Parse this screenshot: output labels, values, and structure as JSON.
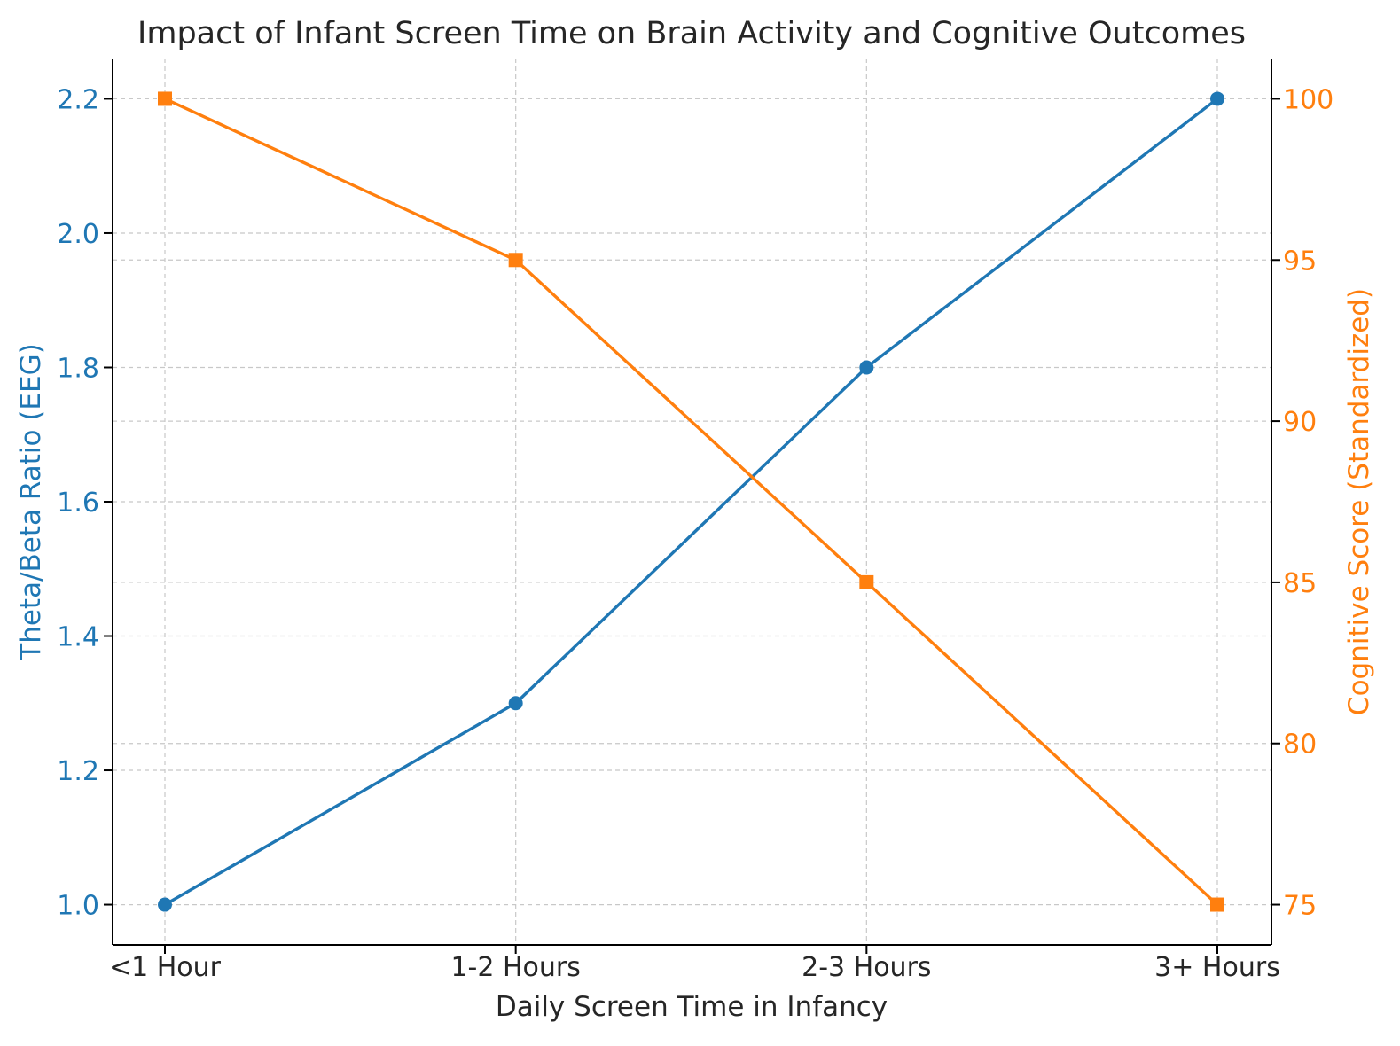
{
  "chart_data": {
    "type": "line",
    "title": "Impact of Infant Screen Time on Brain Activity and Cognitive Outcomes",
    "xlabel": "Daily Screen Time in Infancy",
    "categories": [
      "<1 Hour",
      "1-2 Hours",
      "2-3 Hours",
      "3+ Hours"
    ],
    "grid": true,
    "y_left": {
      "label": "Theta/Beta Ratio (EEG)",
      "ylim": [
        0.94,
        2.26
      ],
      "ticks": [
        "1.0",
        "1.2",
        "1.4",
        "1.6",
        "1.8",
        "2.0",
        "2.2"
      ],
      "color": "#1f77b4"
    },
    "y_right": {
      "label": "Cognitive Score (Standardized)",
      "ylim": [
        73.75,
        101.25
      ],
      "ticks": [
        "75",
        "80",
        "85",
        "90",
        "95",
        "100"
      ],
      "color": "#ff7f0e"
    },
    "series": [
      {
        "axis": "left",
        "marker": "circle",
        "color": "#1f77b4",
        "values": [
          1.0,
          1.3,
          1.8,
          2.2
        ]
      },
      {
        "axis": "right",
        "marker": "square",
        "color": "#ff7f0e",
        "values": [
          100,
          95,
          85,
          75
        ]
      }
    ]
  }
}
